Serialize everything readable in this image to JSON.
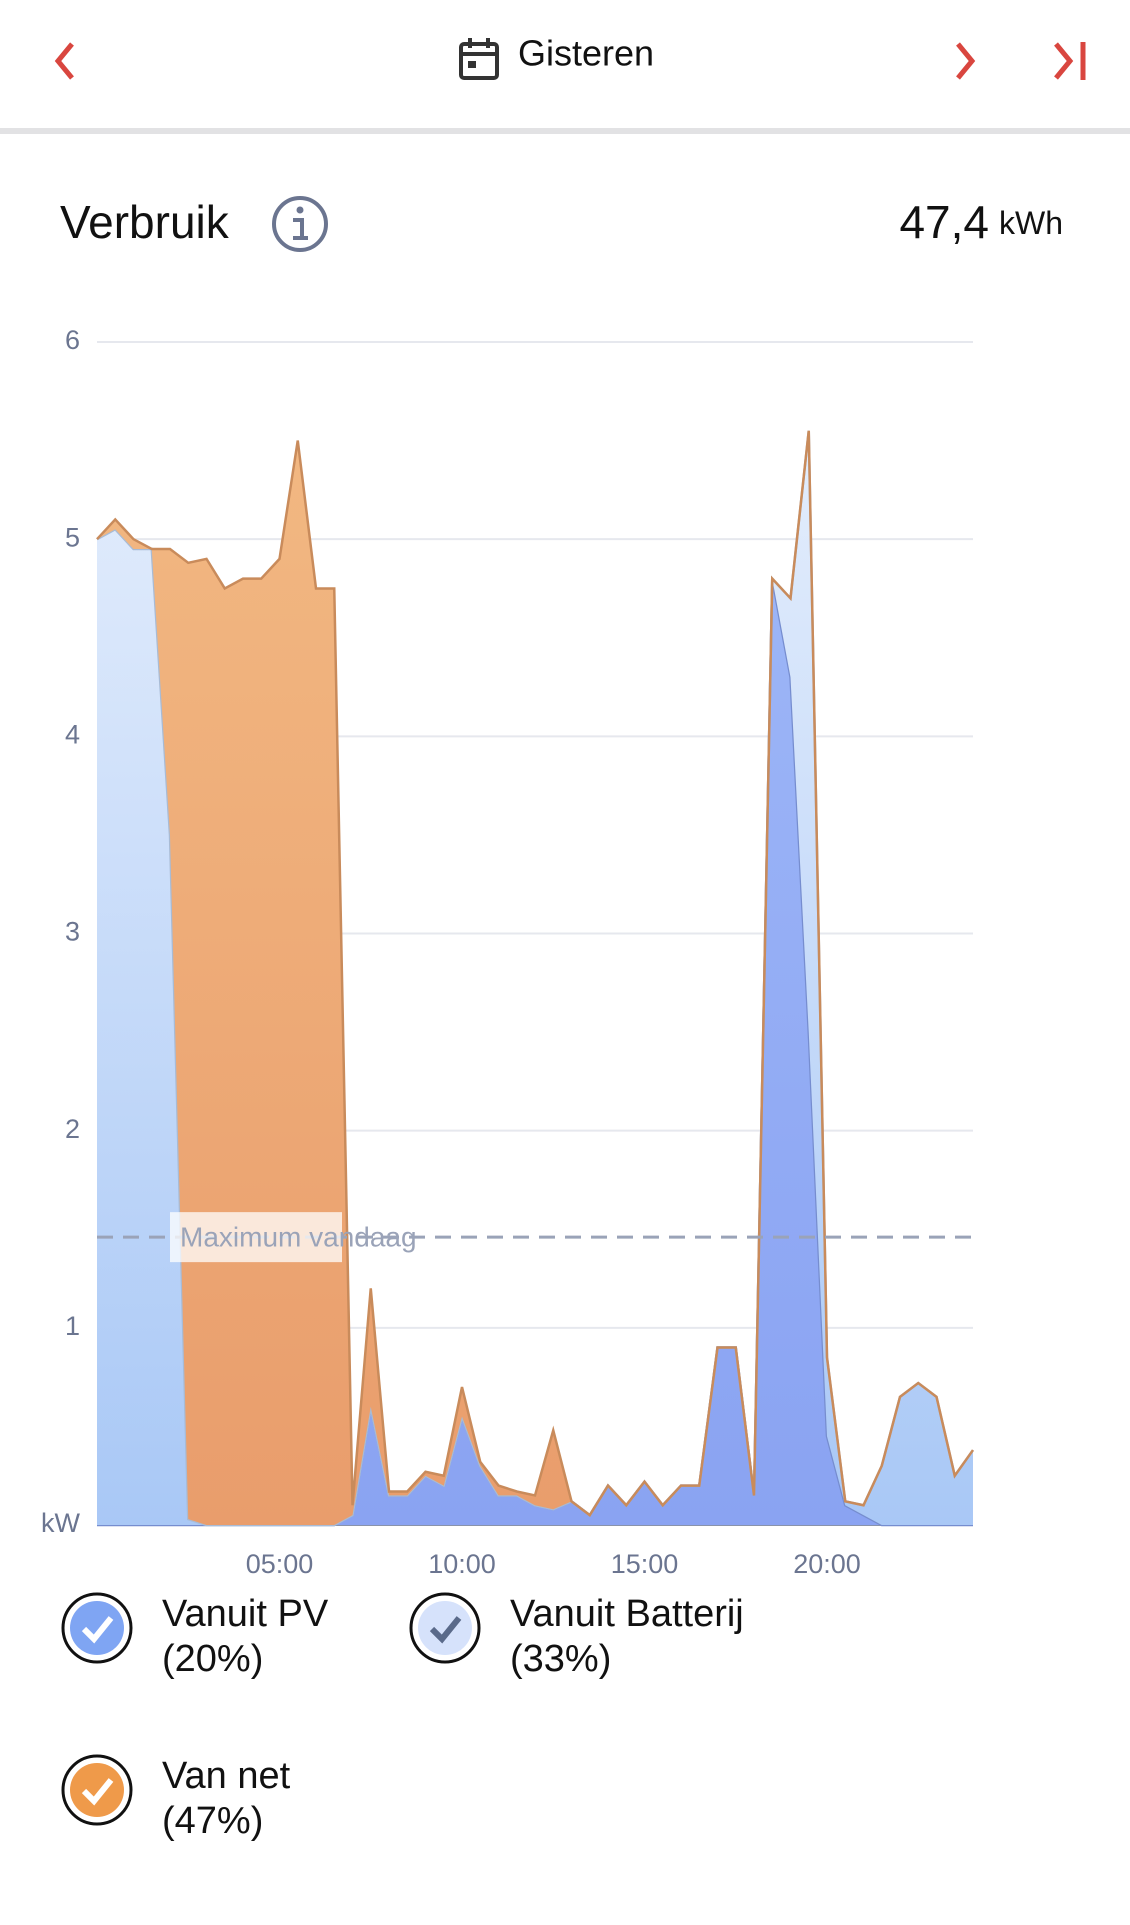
{
  "header": {
    "title": "Gisteren"
  },
  "section": {
    "title": "Verbruik",
    "total": "47,4",
    "unit": "kWh"
  },
  "chart_data": {
    "type": "stacked-area",
    "x": [
      0,
      0.5,
      1,
      1.5,
      2,
      2.5,
      3,
      3.5,
      4,
      4.5,
      5,
      5.5,
      6,
      6.5,
      7,
      7.5,
      8,
      8.5,
      9,
      9.5,
      10,
      10.5,
      11,
      11.5,
      12,
      12.5,
      13,
      13.5,
      14,
      14.5,
      15,
      15.5,
      16,
      16.5,
      17,
      17.5,
      18,
      18.5,
      19,
      19.5,
      20,
      20.5,
      21,
      21.5,
      22,
      22.5,
      23,
      23.5,
      24
    ],
    "xlim": [
      0,
      24
    ],
    "xticks": [
      {
        "value": 5,
        "label": "05:00"
      },
      {
        "value": 10,
        "label": "10:00"
      },
      {
        "value": 15,
        "label": "15:00"
      },
      {
        "value": 20,
        "label": "20:00"
      }
    ],
    "ylim": [
      0,
      6
    ],
    "yticks": [
      {
        "value": 0,
        "label": "kW"
      },
      1,
      2,
      3,
      4,
      5,
      6
    ],
    "grid": true,
    "reference_line": {
      "label": "Maximum vandaag",
      "value": 1.46
    },
    "series": [
      {
        "name": "Vanuit PV",
        "share": "(20%)",
        "color": "#8ba6f3",
        "values": [
          0,
          0,
          0,
          0,
          0,
          0,
          0,
          0,
          0,
          0,
          0,
          0,
          0,
          0,
          0.05,
          0.6,
          0.15,
          0.15,
          0.25,
          0.2,
          0.55,
          0.3,
          0.15,
          0.15,
          0.1,
          0.08,
          0.12,
          0.05,
          0.2,
          0.1,
          0.22,
          0.1,
          0.2,
          0.2,
          0.9,
          0.9,
          0.15,
          4.8,
          4.3,
          2.5,
          0.45,
          0.1,
          0.05,
          0,
          0,
          0,
          0,
          0,
          0
        ]
      },
      {
        "name": "Vanuit Batterij",
        "share": "(33%)",
        "color": "#c6dcfa",
        "values": [
          5.0,
          5.05,
          4.95,
          4.95,
          3.5,
          0.03,
          0,
          0,
          0,
          0,
          0,
          0,
          0,
          0,
          0,
          0,
          0,
          0,
          0,
          0,
          0,
          0,
          0,
          0,
          0,
          0,
          0,
          0,
          0,
          0,
          0,
          0,
          0,
          0,
          0,
          0,
          0,
          0,
          0.4,
          3.05,
          0.4,
          0.02,
          0.05,
          0.3,
          0.65,
          0.72,
          0.65,
          0.25,
          0.38
        ]
      },
      {
        "name": "Van net",
        "share": "(47%)",
        "color": "#eca46b",
        "values": [
          0,
          0.05,
          0.05,
          0,
          1.45,
          4.85,
          4.9,
          4.75,
          4.8,
          4.8,
          4.9,
          5.5,
          4.75,
          4.75,
          0.05,
          0.6,
          0.02,
          0.02,
          0.02,
          0.05,
          0.15,
          0.02,
          0.05,
          0.02,
          0.05,
          0.4,
          0,
          0,
          0,
          0,
          0,
          0,
          0,
          0,
          0,
          0,
          0,
          0,
          0,
          0,
          0,
          0,
          0,
          0,
          0,
          0,
          0,
          0,
          0
        ]
      }
    ]
  }
}
